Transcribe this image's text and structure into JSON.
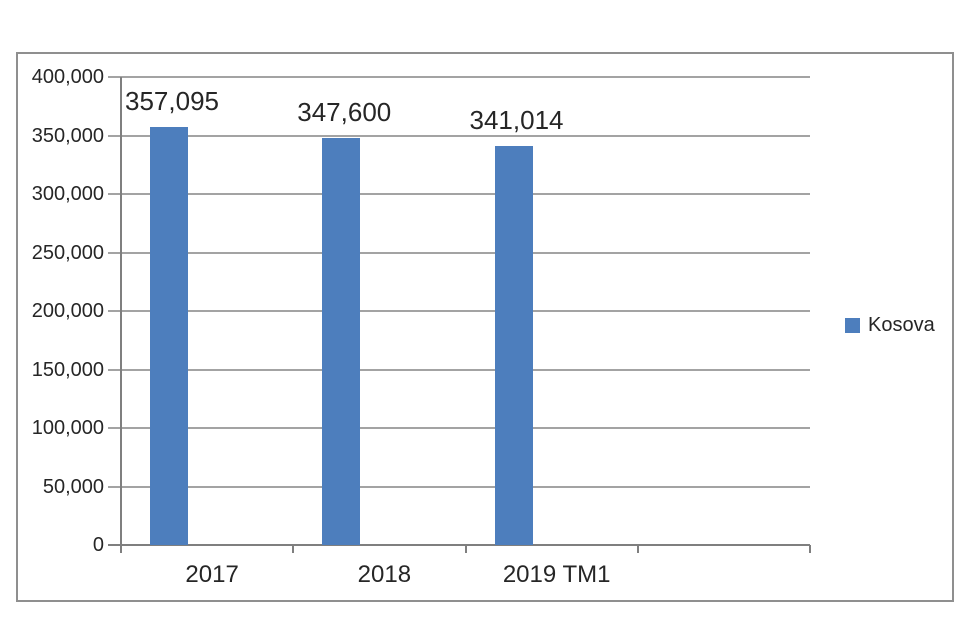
{
  "chart_data": {
    "type": "bar",
    "title": "",
    "categories": [
      "2017",
      "2018",
      "2019 TM1"
    ],
    "series": [
      {
        "name": "Kosova",
        "values": [
          357095,
          347600,
          341014
        ]
      }
    ],
    "value_labels": [
      "357,095",
      "347,600",
      "341,014"
    ],
    "y_axis": {
      "min": 0,
      "max": 400000,
      "tick_step": 50000,
      "tick_labels": [
        "400,000",
        "350,000",
        "300,000",
        "250,000",
        "200,000",
        "150,000",
        "100,000",
        "50,000",
        "0"
      ]
    },
    "x_axis": {
      "slots": 4,
      "labeled_slots": 3,
      "tick_marks_between_categories": true
    },
    "legend": {
      "position": "right",
      "entries": [
        {
          "label": "Kosova",
          "color": "#4d7ebd"
        }
      ]
    },
    "grid": true
  },
  "colors": {
    "bar": "#4d7ebd",
    "gridline": "#a3a3a3",
    "axis": "#7f7f7f",
    "frame_border": "#8f8f8f",
    "text": "#262626",
    "background": "#ffffff"
  }
}
